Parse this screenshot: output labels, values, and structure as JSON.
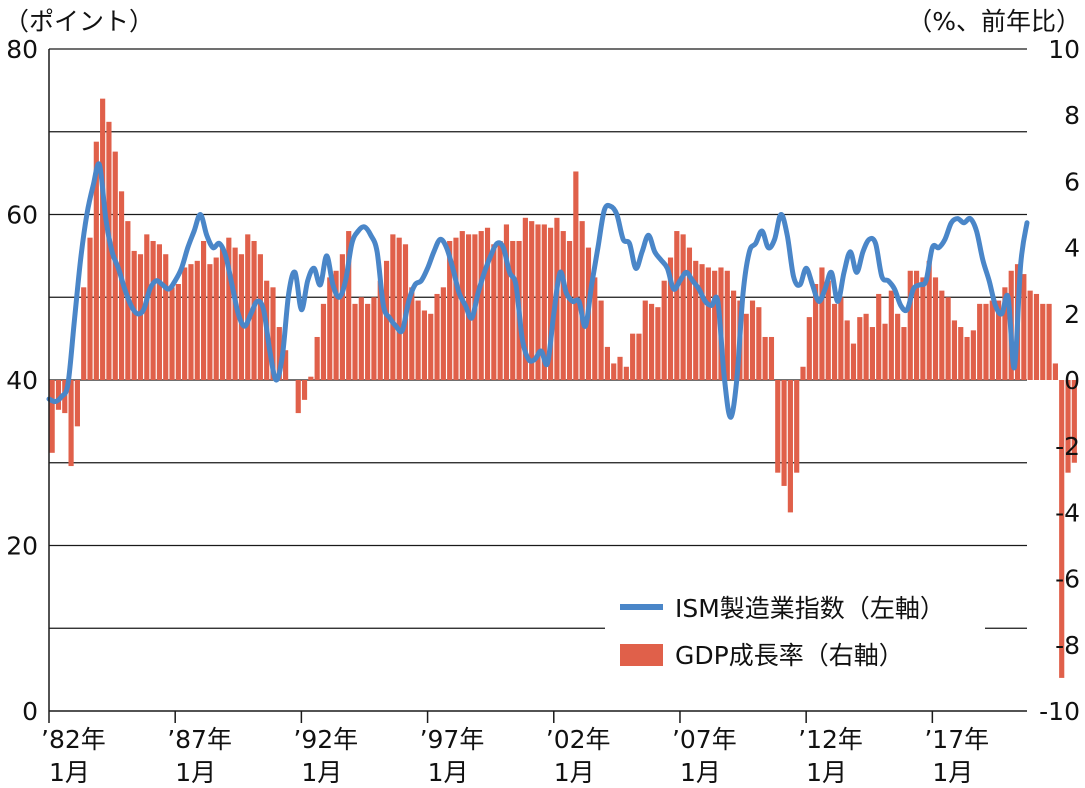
{
  "chart_data": {
    "type": "bar+line",
    "left_axis": {
      "unit_label": "（ポイント）",
      "ticks": [
        "0",
        "20",
        "40",
        "60",
        "80"
      ],
      "range": [
        0,
        80
      ]
    },
    "right_axis": {
      "unit_label": "（%、前年比）",
      "ticks": [
        "-10",
        "-8",
        "-6",
        "-4",
        "-2",
        "0",
        "2",
        "4",
        "6",
        "8",
        "10"
      ],
      "range": [
        -10,
        10
      ]
    },
    "x_axis": {
      "ticks": [
        {
          "year": "’82年",
          "month": "1月"
        },
        {
          "year": "’87年",
          "month": "1月"
        },
        {
          "year": "’92年",
          "month": "1月"
        },
        {
          "year": "’97年",
          "month": "1月"
        },
        {
          "year": "’02年",
          "month": "1月"
        },
        {
          "year": "’07年",
          "month": "1月"
        },
        {
          "year": "’12年",
          "month": "1月"
        },
        {
          "year": "’17年",
          "month": "1月"
        }
      ],
      "range": [
        1982.0,
        2020.75
      ]
    },
    "legend": [
      {
        "name": "ISM製造業指数（左軸）",
        "color": "#4a86c8",
        "kind": "line"
      },
      {
        "name": "GDP成長率（右軸）",
        "color": "#e0604a",
        "kind": "bar"
      }
    ],
    "grid": "horizontal",
    "legend_position": "bottom-right",
    "gdp_series": {
      "name": "GDP成長率（右軸）",
      "axis": "right",
      "start": 1982.0,
      "step": 0.25,
      "values": [
        -2.2,
        -0.9,
        -1.0,
        -2.6,
        -1.4,
        2.8,
        4.3,
        7.2,
        8.5,
        7.8,
        6.9,
        5.7,
        4.8,
        3.9,
        3.8,
        4.4,
        4.2,
        4.1,
        3.8,
        2.8,
        2.9,
        3.4,
        3.5,
        3.6,
        4.2,
        3.5,
        3.7,
        4.0,
        4.3,
        4.0,
        3.8,
        4.4,
        4.2,
        3.8,
        3.0,
        2.8,
        1.6,
        0.9,
        0.0,
        -1.0,
        -0.6,
        0.1,
        1.3,
        2.3,
        3.1,
        3.3,
        3.8,
        4.5,
        2.3,
        2.5,
        2.3,
        2.5,
        3.0,
        3.6,
        4.4,
        4.3,
        4.1,
        2.8,
        2.4,
        2.1,
        2.0,
        2.6,
        2.8,
        4.2,
        4.3,
        4.5,
        4.4,
        4.4,
        4.5,
        4.6,
        4.1,
        4.2,
        4.7,
        4.2,
        4.2,
        4.9,
        4.8,
        4.7,
        4.7,
        4.6,
        4.9,
        4.5,
        4.2,
        6.3,
        4.8,
        4.0,
        3.1,
        2.4,
        1.0,
        0.5,
        0.7,
        0.4,
        1.4,
        1.4,
        2.4,
        2.3,
        2.2,
        3.0,
        3.7,
        4.5,
        4.4,
        4.0,
        3.6,
        3.5,
        3.4,
        3.3,
        3.4,
        3.3,
        2.7,
        2.4,
        2.0,
        2.4,
        2.2,
        1.3,
        1.3,
        -2.8,
        -3.2,
        -4.0,
        -2.8,
        0.4,
        1.9,
        2.9,
        3.4,
        3.0,
        2.3,
        2.5,
        1.8,
        1.1,
        1.9,
        2.0,
        1.6,
        2.6,
        1.7,
        2.7,
        2.0,
        1.6,
        3.3,
        3.3,
        3.1,
        3.6,
        3.1,
        2.7,
        2.5,
        1.8,
        1.6,
        1.3,
        1.5,
        2.3,
        2.3,
        2.4,
        2.4,
        2.8,
        3.3,
        3.5,
        3.2,
        2.7,
        2.6,
        2.3,
        2.3,
        0.5,
        -9.0,
        -2.8,
        -2.5
      ]
    },
    "ism_series": {
      "name": "ISM製造業指数（左軸）",
      "axis": "left",
      "points": [
        [
          1982.0,
          37.7
        ],
        [
          1982.25,
          37.4
        ],
        [
          1982.5,
          38.0
        ],
        [
          1982.75,
          39.5
        ],
        [
          1983.0,
          47.0
        ],
        [
          1983.25,
          54.5
        ],
        [
          1983.5,
          60.0
        ],
        [
          1983.75,
          63.5
        ],
        [
          1984.0,
          66.0
        ],
        [
          1984.25,
          59.5
        ],
        [
          1984.5,
          55.5
        ],
        [
          1984.75,
          53.5
        ],
        [
          1985.0,
          51.0
        ],
        [
          1985.25,
          49.0
        ],
        [
          1985.5,
          48.0
        ],
        [
          1985.75,
          48.5
        ],
        [
          1986.0,
          51.0
        ],
        [
          1986.25,
          52.0
        ],
        [
          1986.5,
          51.5
        ],
        [
          1986.75,
          51.0
        ],
        [
          1987.0,
          52.0
        ],
        [
          1987.25,
          53.5
        ],
        [
          1987.5,
          56.0
        ],
        [
          1987.75,
          58.0
        ],
        [
          1988.0,
          60.0
        ],
        [
          1988.25,
          57.5
        ],
        [
          1988.5,
          56.0
        ],
        [
          1988.75,
          56.5
        ],
        [
          1989.0,
          55.0
        ],
        [
          1989.25,
          51.5
        ],
        [
          1989.5,
          48.0
        ],
        [
          1989.75,
          46.5
        ],
        [
          1990.0,
          48.0
        ],
        [
          1990.25,
          49.5
        ],
        [
          1990.5,
          48.5
        ],
        [
          1990.75,
          43.5
        ],
        [
          1991.0,
          40.0
        ],
        [
          1991.25,
          43.0
        ],
        [
          1991.5,
          50.5
        ],
        [
          1991.75,
          53.0
        ],
        [
          1992.0,
          48.5
        ],
        [
          1992.25,
          52.0
        ],
        [
          1992.5,
          53.5
        ],
        [
          1992.75,
          51.5
        ],
        [
          1993.0,
          55.0
        ],
        [
          1993.25,
          51.5
        ],
        [
          1993.5,
          50.0
        ],
        [
          1993.75,
          52.0
        ],
        [
          1994.0,
          56.5
        ],
        [
          1994.25,
          58.0
        ],
        [
          1994.5,
          58.5
        ],
        [
          1994.75,
          57.5
        ],
        [
          1995.0,
          55.5
        ],
        [
          1995.25,
          49.0
        ],
        [
          1995.5,
          47.5
        ],
        [
          1995.75,
          46.5
        ],
        [
          1996.0,
          46.0
        ],
        [
          1996.25,
          49.5
        ],
        [
          1996.5,
          51.5
        ],
        [
          1996.75,
          52.0
        ],
        [
          1997.0,
          53.5
        ],
        [
          1997.25,
          55.5
        ],
        [
          1997.5,
          57.0
        ],
        [
          1997.75,
          56.0
        ],
        [
          1998.0,
          53.5
        ],
        [
          1998.25,
          50.5
        ],
        [
          1998.5,
          49.0
        ],
        [
          1998.75,
          47.5
        ],
        [
          1999.0,
          50.5
        ],
        [
          1999.25,
          53.0
        ],
        [
          1999.5,
          55.0
        ],
        [
          1999.75,
          56.5
        ],
        [
          2000.0,
          56.0
        ],
        [
          2000.25,
          53.0
        ],
        [
          2000.5,
          51.5
        ],
        [
          2000.75,
          45.0
        ],
        [
          2001.0,
          42.5
        ],
        [
          2001.25,
          42.5
        ],
        [
          2001.5,
          43.5
        ],
        [
          2001.75,
          42.0
        ],
        [
          2002.0,
          48.0
        ],
        [
          2002.25,
          53.0
        ],
        [
          2002.5,
          50.5
        ],
        [
          2002.75,
          49.5
        ],
        [
          2003.0,
          49.5
        ],
        [
          2003.25,
          46.5
        ],
        [
          2003.5,
          51.5
        ],
        [
          2003.75,
          56.0
        ],
        [
          2004.0,
          60.5
        ],
        [
          2004.25,
          61.0
        ],
        [
          2004.5,
          60.0
        ],
        [
          2004.75,
          57.0
        ],
        [
          2005.0,
          56.5
        ],
        [
          2005.25,
          53.5
        ],
        [
          2005.5,
          55.5
        ],
        [
          2005.75,
          57.5
        ],
        [
          2006.0,
          55.5
        ],
        [
          2006.25,
          54.5
        ],
        [
          2006.5,
          53.5
        ],
        [
          2006.75,
          51.0
        ],
        [
          2007.0,
          52.0
        ],
        [
          2007.25,
          53.0
        ],
        [
          2007.5,
          52.0
        ],
        [
          2007.75,
          51.0
        ],
        [
          2008.0,
          49.5
        ],
        [
          2008.25,
          49.0
        ],
        [
          2008.5,
          49.5
        ],
        [
          2008.75,
          40.5
        ],
        [
          2009.0,
          35.5
        ],
        [
          2009.25,
          40.0
        ],
        [
          2009.5,
          50.5
        ],
        [
          2009.75,
          55.5
        ],
        [
          2010.0,
          56.5
        ],
        [
          2010.25,
          58.0
        ],
        [
          2010.5,
          56.0
        ],
        [
          2010.75,
          57.0
        ],
        [
          2011.0,
          60.0
        ],
        [
          2011.25,
          57.5
        ],
        [
          2011.5,
          52.5
        ],
        [
          2011.75,
          51.5
        ],
        [
          2012.0,
          53.5
        ],
        [
          2012.25,
          51.5
        ],
        [
          2012.5,
          49.5
        ],
        [
          2012.75,
          51.0
        ],
        [
          2013.0,
          53.0
        ],
        [
          2013.25,
          49.5
        ],
        [
          2013.5,
          53.0
        ],
        [
          2013.75,
          55.5
        ],
        [
          2014.0,
          53.0
        ],
        [
          2014.25,
          55.5
        ],
        [
          2014.5,
          57.0
        ],
        [
          2014.75,
          56.5
        ],
        [
          2015.0,
          52.5
        ],
        [
          2015.25,
          52.0
        ],
        [
          2015.5,
          51.0
        ],
        [
          2015.75,
          49.0
        ],
        [
          2016.0,
          48.5
        ],
        [
          2016.25,
          51.0
        ],
        [
          2016.5,
          51.5
        ],
        [
          2016.75,
          52.0
        ],
        [
          2017.0,
          56.0
        ],
        [
          2017.25,
          56.0
        ],
        [
          2017.5,
          57.0
        ],
        [
          2017.75,
          59.0
        ],
        [
          2018.0,
          59.5
        ],
        [
          2018.25,
          59.0
        ],
        [
          2018.5,
          59.5
        ],
        [
          2018.75,
          58.0
        ],
        [
          2019.0,
          54.5
        ],
        [
          2019.25,
          52.0
        ],
        [
          2019.5,
          49.0
        ],
        [
          2019.75,
          48.0
        ],
        [
          2020.0,
          50.0
        ],
        [
          2020.25,
          41.5
        ],
        [
          2020.5,
          54.0
        ],
        [
          2020.75,
          59.0
        ]
      ]
    }
  }
}
